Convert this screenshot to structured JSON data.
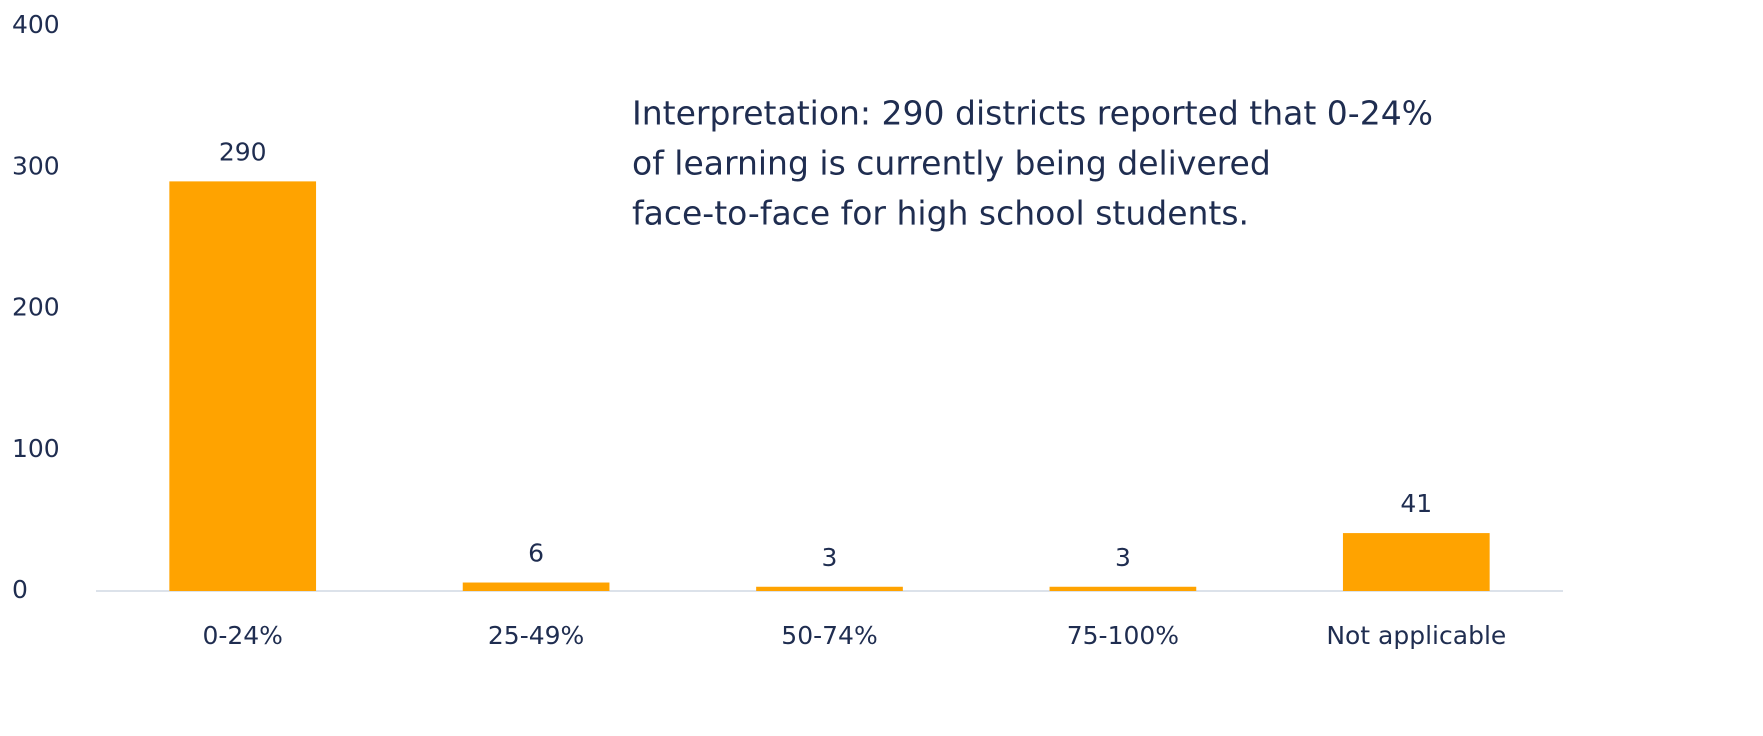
{
  "chart_data": {
    "type": "bar",
    "categories": [
      "0-24%",
      "25-49%",
      "50-74%",
      "75-100%",
      "Not applicable"
    ],
    "values": [
      290,
      6,
      3,
      3,
      41
    ],
    "color": "#ffa300",
    "ylim": [
      0,
      400
    ],
    "yticks": [
      0,
      100,
      200,
      300,
      400
    ],
    "grid": false,
    "annotation": [
      "Interpretation: 290 districts reported that 0-24%",
      "of learning is currently being delivered",
      "face-to-face for high school students."
    ]
  }
}
